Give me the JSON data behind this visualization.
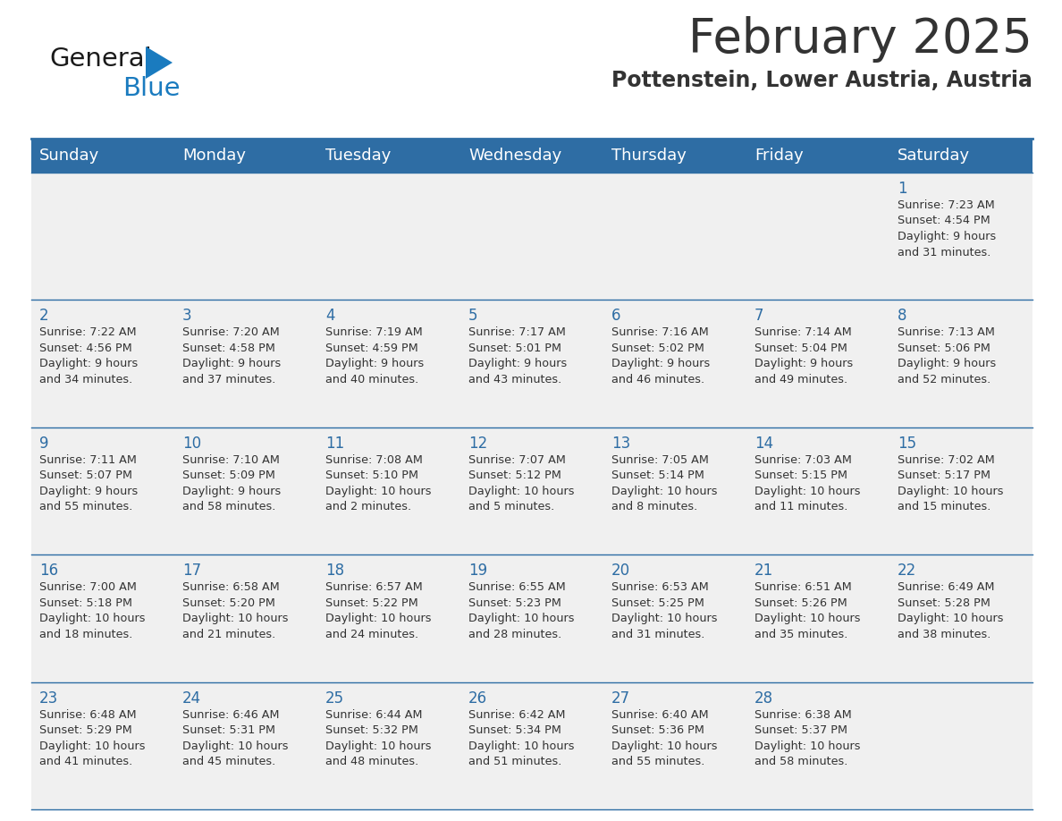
{
  "title": "February 2025",
  "subtitle": "Pottenstein, Lower Austria, Austria",
  "header_bg": "#2E6DA4",
  "header_text": "#FFFFFF",
  "cell_bg_light": "#F0F0F0",
  "text_color": "#333333",
  "day_number_color": "#2E6DA4",
  "line_color": "#2E6DA4",
  "days_of_week": [
    "Sunday",
    "Monday",
    "Tuesday",
    "Wednesday",
    "Thursday",
    "Friday",
    "Saturday"
  ],
  "title_fontsize": 38,
  "subtitle_fontsize": 17,
  "header_fontsize": 13,
  "day_num_fontsize": 12,
  "cell_text_fontsize": 9.2,
  "calendar_data": [
    [
      {
        "day": null,
        "info": ""
      },
      {
        "day": null,
        "info": ""
      },
      {
        "day": null,
        "info": ""
      },
      {
        "day": null,
        "info": ""
      },
      {
        "day": null,
        "info": ""
      },
      {
        "day": null,
        "info": ""
      },
      {
        "day": 1,
        "info": "Sunrise: 7:23 AM\nSunset: 4:54 PM\nDaylight: 9 hours\nand 31 minutes."
      }
    ],
    [
      {
        "day": 2,
        "info": "Sunrise: 7:22 AM\nSunset: 4:56 PM\nDaylight: 9 hours\nand 34 minutes."
      },
      {
        "day": 3,
        "info": "Sunrise: 7:20 AM\nSunset: 4:58 PM\nDaylight: 9 hours\nand 37 minutes."
      },
      {
        "day": 4,
        "info": "Sunrise: 7:19 AM\nSunset: 4:59 PM\nDaylight: 9 hours\nand 40 minutes."
      },
      {
        "day": 5,
        "info": "Sunrise: 7:17 AM\nSunset: 5:01 PM\nDaylight: 9 hours\nand 43 minutes."
      },
      {
        "day": 6,
        "info": "Sunrise: 7:16 AM\nSunset: 5:02 PM\nDaylight: 9 hours\nand 46 minutes."
      },
      {
        "day": 7,
        "info": "Sunrise: 7:14 AM\nSunset: 5:04 PM\nDaylight: 9 hours\nand 49 minutes."
      },
      {
        "day": 8,
        "info": "Sunrise: 7:13 AM\nSunset: 5:06 PM\nDaylight: 9 hours\nand 52 minutes."
      }
    ],
    [
      {
        "day": 9,
        "info": "Sunrise: 7:11 AM\nSunset: 5:07 PM\nDaylight: 9 hours\nand 55 minutes."
      },
      {
        "day": 10,
        "info": "Sunrise: 7:10 AM\nSunset: 5:09 PM\nDaylight: 9 hours\nand 58 minutes."
      },
      {
        "day": 11,
        "info": "Sunrise: 7:08 AM\nSunset: 5:10 PM\nDaylight: 10 hours\nand 2 minutes."
      },
      {
        "day": 12,
        "info": "Sunrise: 7:07 AM\nSunset: 5:12 PM\nDaylight: 10 hours\nand 5 minutes."
      },
      {
        "day": 13,
        "info": "Sunrise: 7:05 AM\nSunset: 5:14 PM\nDaylight: 10 hours\nand 8 minutes."
      },
      {
        "day": 14,
        "info": "Sunrise: 7:03 AM\nSunset: 5:15 PM\nDaylight: 10 hours\nand 11 minutes."
      },
      {
        "day": 15,
        "info": "Sunrise: 7:02 AM\nSunset: 5:17 PM\nDaylight: 10 hours\nand 15 minutes."
      }
    ],
    [
      {
        "day": 16,
        "info": "Sunrise: 7:00 AM\nSunset: 5:18 PM\nDaylight: 10 hours\nand 18 minutes."
      },
      {
        "day": 17,
        "info": "Sunrise: 6:58 AM\nSunset: 5:20 PM\nDaylight: 10 hours\nand 21 minutes."
      },
      {
        "day": 18,
        "info": "Sunrise: 6:57 AM\nSunset: 5:22 PM\nDaylight: 10 hours\nand 24 minutes."
      },
      {
        "day": 19,
        "info": "Sunrise: 6:55 AM\nSunset: 5:23 PM\nDaylight: 10 hours\nand 28 minutes."
      },
      {
        "day": 20,
        "info": "Sunrise: 6:53 AM\nSunset: 5:25 PM\nDaylight: 10 hours\nand 31 minutes."
      },
      {
        "day": 21,
        "info": "Sunrise: 6:51 AM\nSunset: 5:26 PM\nDaylight: 10 hours\nand 35 minutes."
      },
      {
        "day": 22,
        "info": "Sunrise: 6:49 AM\nSunset: 5:28 PM\nDaylight: 10 hours\nand 38 minutes."
      }
    ],
    [
      {
        "day": 23,
        "info": "Sunrise: 6:48 AM\nSunset: 5:29 PM\nDaylight: 10 hours\nand 41 minutes."
      },
      {
        "day": 24,
        "info": "Sunrise: 6:46 AM\nSunset: 5:31 PM\nDaylight: 10 hours\nand 45 minutes."
      },
      {
        "day": 25,
        "info": "Sunrise: 6:44 AM\nSunset: 5:32 PM\nDaylight: 10 hours\nand 48 minutes."
      },
      {
        "day": 26,
        "info": "Sunrise: 6:42 AM\nSunset: 5:34 PM\nDaylight: 10 hours\nand 51 minutes."
      },
      {
        "day": 27,
        "info": "Sunrise: 6:40 AM\nSunset: 5:36 PM\nDaylight: 10 hours\nand 55 minutes."
      },
      {
        "day": 28,
        "info": "Sunrise: 6:38 AM\nSunset: 5:37 PM\nDaylight: 10 hours\nand 58 minutes."
      },
      {
        "day": null,
        "info": ""
      }
    ]
  ],
  "logo_general_color": "#1a1a1a",
  "logo_blue_color": "#1a7bbf",
  "logo_triangle_color": "#1a7bbf"
}
